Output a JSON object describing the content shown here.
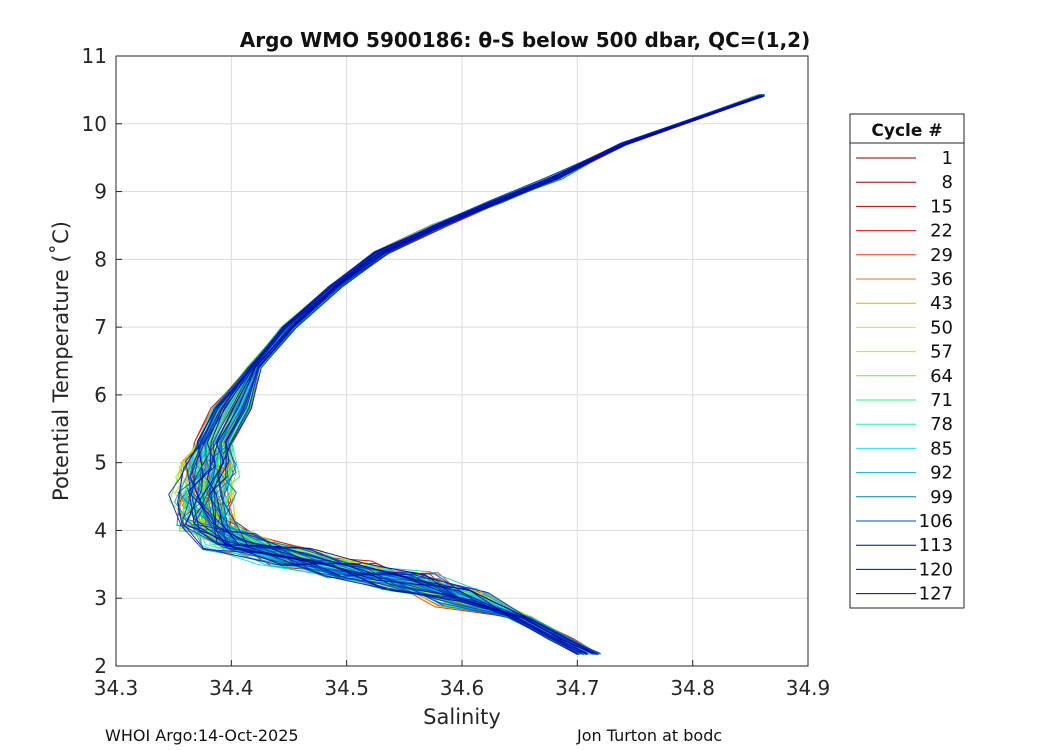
{
  "chart_data": {
    "type": "line",
    "title": "Argo WMO 5900186: θ-S below 500 dbar,  QC=(1,2)",
    "xlabel": "Salinity",
    "ylabel": "Potential Temperature (˚C)",
    "xlim": [
      34.3,
      34.9
    ],
    "ylim": [
      2,
      11
    ],
    "xticks": [
      "34.3",
      "34.4",
      "34.5",
      "34.6",
      "34.7",
      "34.8",
      "34.9"
    ],
    "yticks": [
      "2",
      "3",
      "4",
      "5",
      "6",
      "7",
      "8",
      "9",
      "10",
      "11"
    ],
    "grid": true,
    "legend_position": "right",
    "legend_title": "Cycle #",
    "legend": [
      {
        "name": "1",
        "color": "#800000"
      },
      {
        "name": "8",
        "color": "#a00000"
      },
      {
        "name": "15",
        "color": "#c00000"
      },
      {
        "name": "22",
        "color": "#e01010"
      },
      {
        "name": "29",
        "color": "#f03c00"
      },
      {
        "name": "36",
        "color": "#f07000"
      },
      {
        "name": "43",
        "color": "#f0a800"
      },
      {
        "name": "50",
        "color": "#f0e000"
      },
      {
        "name": "57",
        "color": "#b8f000"
      },
      {
        "name": "64",
        "color": "#60f030"
      },
      {
        "name": "71",
        "color": "#30f070"
      },
      {
        "name": "78",
        "color": "#20f0b0"
      },
      {
        "name": "85",
        "color": "#20e0e8"
      },
      {
        "name": "92",
        "color": "#00b0d0"
      },
      {
        "name": "99",
        "color": "#0080c0"
      },
      {
        "name": "106",
        "color": "#0050b0"
      },
      {
        "name": "113",
        "color": "#000090"
      },
      {
        "name": "120",
        "color": "#0000c0"
      },
      {
        "name": "127",
        "color": "#0000a0"
      }
    ],
    "profile_template": {
      "S": [
        34.86,
        34.74,
        34.68,
        34.63,
        34.58,
        34.53,
        34.49,
        34.45,
        34.42,
        34.4,
        34.385,
        34.38,
        34.375,
        34.38,
        34.4,
        34.45,
        34.5,
        34.55,
        34.6,
        34.65,
        34.685,
        34.71
      ],
      "T": [
        10.42,
        9.7,
        9.2,
        8.85,
        8.5,
        8.1,
        7.6,
        7.0,
        6.4,
        5.8,
        5.3,
        4.9,
        4.5,
        4.1,
        3.85,
        3.6,
        3.42,
        3.25,
        3.0,
        2.72,
        2.4,
        2.18
      ]
    }
  },
  "footer": {
    "left": "WHOI Argo:14-Oct-2025",
    "right": "Jon Turton at bodc"
  }
}
